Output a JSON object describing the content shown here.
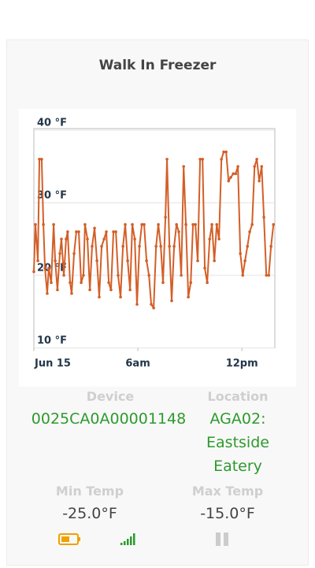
{
  "header": {
    "title": "Walk In Freezer"
  },
  "chart_data": {
    "type": "line",
    "x": [
      0,
      0.09,
      0.23,
      0.32,
      0.45,
      0.55,
      0.64,
      0.77,
      0.86,
      1.0,
      1.14,
      1.23,
      1.36,
      1.5,
      1.59,
      1.73,
      1.86,
      1.95,
      2.09,
      2.18,
      2.32,
      2.45,
      2.59,
      2.73,
      2.86,
      2.95,
      3.09,
      3.23,
      3.36,
      3.5,
      3.64,
      3.77,
      3.91,
      4.05,
      4.18,
      4.32,
      4.45,
      4.59,
      4.73,
      4.86,
      5.0,
      5.14,
      5.27,
      5.41,
      5.55,
      5.68,
      5.82,
      5.95,
      6.09,
      6.23,
      6.36,
      6.5,
      6.64,
      6.77,
      6.91,
      7.05,
      7.18,
      7.32,
      7.45,
      7.59,
      7.68,
      7.82,
      7.95,
      8.09,
      8.23,
      8.36,
      8.5,
      8.64,
      8.77,
      8.91,
      9.05,
      9.18,
      9.32,
      9.45,
      9.59,
      9.73,
      9.86,
      10.0,
      10.14,
      10.27,
      10.41,
      10.55,
      10.68,
      10.82,
      10.95,
      11.09,
      11.23,
      11.36,
      11.5,
      11.64,
      11.77,
      11.91,
      12.05,
      12.18,
      12.32,
      12.45,
      12.59,
      12.73,
      12.86,
      13.0,
      13.14,
      13.27,
      13.41,
      13.55,
      13.68,
      13.82
    ],
    "series": [
      {
        "color": "#d35f27",
        "values": [
          20.5,
          27,
          22,
          36,
          36,
          27,
          21,
          17.5,
          21,
          19,
          27,
          22,
          18,
          23,
          25,
          20,
          25,
          26,
          19,
          17.5,
          23,
          26,
          26,
          19,
          20,
          27,
          25,
          18,
          24,
          26.5,
          22,
          17,
          24,
          25,
          26,
          19,
          18,
          26,
          26,
          20,
          17,
          24,
          27,
          22,
          18,
          27,
          25,
          16,
          24,
          27,
          27,
          22,
          20,
          16,
          15.5,
          24,
          27,
          24,
          19,
          28,
          36,
          24,
          16.5,
          24,
          27,
          26,
          20,
          35,
          27,
          17,
          19,
          27,
          27,
          22,
          36,
          36,
          21,
          19,
          25,
          27,
          22,
          27,
          25,
          36,
          37,
          37,
          33,
          33.5,
          34,
          34,
          35,
          23,
          20,
          22,
          24,
          26,
          27,
          35,
          36,
          33,
          35,
          28,
          20,
          20,
          24,
          27
        ]
      }
    ],
    "xlim": [
      0,
      13.9
    ],
    "ylim": [
      10,
      40
    ],
    "xticks": [
      {
        "value": 0,
        "label": "Jun 15"
      },
      {
        "value": 6,
        "label": "6am"
      },
      {
        "value": 12,
        "label": "12pm"
      }
    ],
    "yticks": [
      {
        "value": 10,
        "label": "10 °F"
      },
      {
        "value": 20,
        "label": "20 °F"
      },
      {
        "value": 30,
        "label": "30 °F"
      },
      {
        "value": 40,
        "label": "40 °F"
      }
    ],
    "grid": true
  },
  "details": {
    "device_label": "Device",
    "device_value": "0025CA0A00001148",
    "location_label": "Location",
    "location_value": "AGA02: Eastside Eatery",
    "min_label": "Min Temp",
    "min_value": "-25.0°F",
    "max_label": "Max Temp",
    "max_value": "-15.0°F"
  }
}
